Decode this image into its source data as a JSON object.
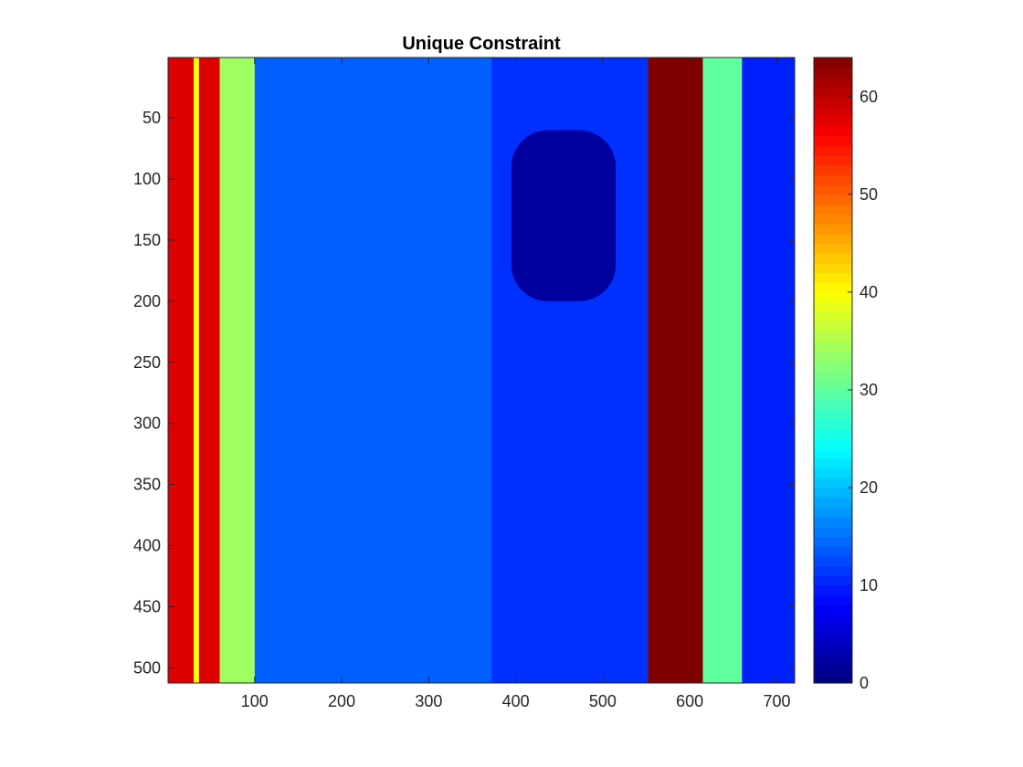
{
  "chart_data": {
    "type": "heatmap",
    "title": "Unique Constraint",
    "xlabel": "",
    "ylabel": "",
    "x_range": [
      1,
      720
    ],
    "y_range": [
      1,
      512
    ],
    "y_direction": "top-down",
    "x_ticks": [
      100,
      200,
      300,
      400,
      500,
      600,
      700
    ],
    "y_ticks": [
      50,
      100,
      150,
      200,
      250,
      300,
      350,
      400,
      450,
      500
    ],
    "colorbar": {
      "colormap": "jet",
      "range": [
        0,
        64
      ],
      "ticks": [
        0,
        10,
        20,
        30,
        40,
        50,
        60
      ]
    },
    "regions": [
      {
        "x": [
          1,
          30
        ],
        "level": 58
      },
      {
        "x": [
          30,
          36
        ],
        "level": 40
      },
      {
        "x": [
          36,
          60
        ],
        "level": 58
      },
      {
        "x": [
          60,
          100
        ],
        "level": 34
      },
      {
        "x": [
          100,
          372
        ],
        "level": 14
      },
      {
        "x": [
          372,
          552
        ],
        "level": 11
      },
      {
        "x": [
          552,
          615
        ],
        "level": 64
      },
      {
        "x": [
          615,
          660
        ],
        "level": 30
      },
      {
        "x": [
          660,
          720
        ],
        "level": 10
      }
    ],
    "dark_region": {
      "x": [
        395,
        515
      ],
      "y": [
        60,
        200
      ],
      "level": 2
    },
    "grid": false,
    "legend": "none"
  }
}
